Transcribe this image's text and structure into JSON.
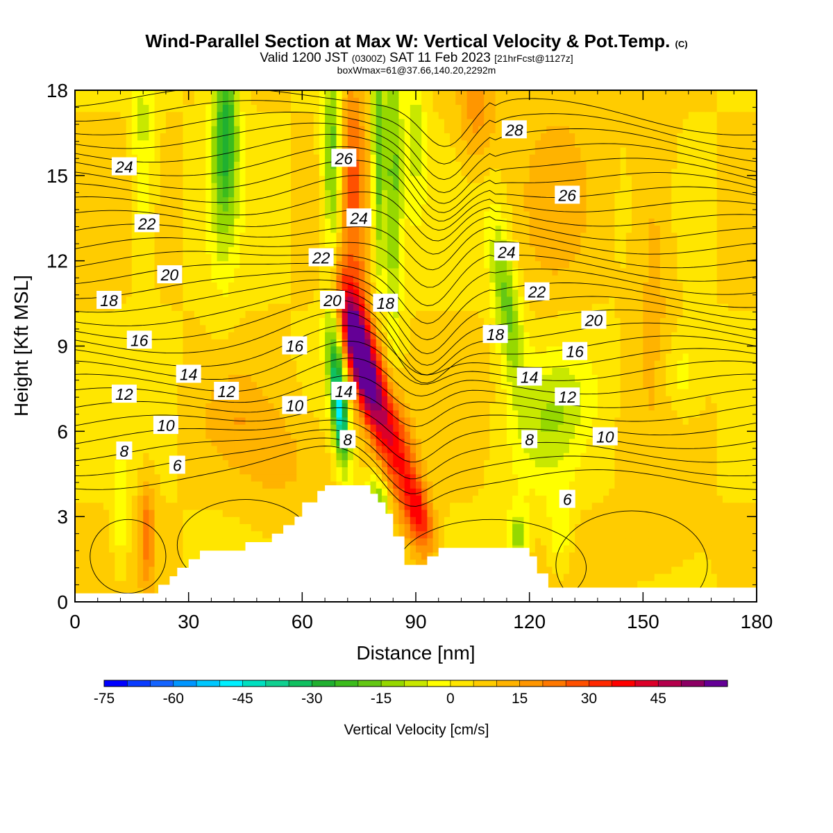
{
  "title": {
    "main": "Wind-Parallel Section at Max W: Vertical Velocity & Pot.Temp.",
    "main_mark": "(C)",
    "valid_prefix": "Valid 1200 JST",
    "valid_zulu": "(0300Z)",
    "valid_date": "SAT 11 Feb 2023",
    "forecast": "[21hrFcst@1127z]",
    "box_info": "boxWmax=61@37.66,140.20,2292m"
  },
  "chart_data": {
    "type": "heatmap",
    "xlabel": "Distance [nm]",
    "ylabel": "Height [Kft MSL]",
    "xlim": [
      0,
      180
    ],
    "ylim": [
      0,
      18
    ],
    "x_ticks": [
      0,
      30,
      60,
      90,
      120,
      150,
      180
    ],
    "y_ticks": [
      0,
      3,
      6,
      9,
      12,
      15,
      18
    ],
    "colorbar": {
      "label": "Vertical Velocity [cm/s]",
      "min": -75,
      "max": 55,
      "step": 5,
      "tick_values": [
        -75,
        -60,
        -45,
        -30,
        -15,
        0,
        15,
        30,
        45
      ],
      "tick_labels": [
        "-75",
        "-60",
        "-45",
        "-30",
        "-15",
        "0",
        "15",
        "30",
        "45"
      ],
      "colors": [
        "#0000ff",
        "#0a3cff",
        "#1464ff",
        "#0096ff",
        "#00c8ff",
        "#00f0ff",
        "#00e0c0",
        "#10d090",
        "#10c060",
        "#20b030",
        "#3cbc1c",
        "#64c814",
        "#96d800",
        "#c8e800",
        "#ffff00",
        "#ffe600",
        "#ffcc00",
        "#ffb300",
        "#ff9600",
        "#ff7800",
        "#ff5000",
        "#ff2800",
        "#ff0000",
        "#dc0028",
        "#b4004c",
        "#8c0064",
        "#640096"
      ]
    },
    "terrain_kft": {
      "x": [
        0,
        22,
        22,
        25,
        25,
        27,
        27,
        30,
        30,
        33,
        33,
        45,
        45,
        52,
        52,
        55,
        55,
        58,
        58,
        60,
        60,
        64,
        64,
        66,
        66,
        69,
        69,
        78,
        78,
        80,
        80,
        82,
        82,
        84,
        84,
        87,
        87,
        93,
        93,
        96,
        96,
        120,
        120,
        122,
        122,
        125,
        125,
        180
      ],
      "y": [
        0.3,
        0.3,
        0.6,
        0.6,
        0.9,
        0.9,
        1.2,
        1.2,
        1.5,
        1.5,
        1.8,
        1.8,
        2.1,
        2.1,
        2.4,
        2.4,
        2.7,
        2.7,
        3.0,
        3.0,
        3.5,
        3.5,
        3.9,
        3.9,
        4.1,
        4.1,
        4.1,
        4.1,
        3.8,
        3.8,
        3.5,
        3.5,
        3.1,
        3.1,
        2.3,
        2.3,
        1.3,
        1.3,
        1.6,
        1.6,
        1.9,
        1.9,
        1.6,
        1.6,
        1.0,
        1.0,
        0.5,
        0.5
      ]
    },
    "velocity_features": [
      {
        "x": 75,
        "y": 8.8,
        "sx": 3.5,
        "sy": 2.2,
        "tilt": 0.75,
        "value": 48
      },
      {
        "x": 79,
        "y": 7.5,
        "sx": 5,
        "sy": 3.5,
        "tilt": 0.75,
        "value": 22
      },
      {
        "x": 86,
        "y": 5,
        "sx": 4.5,
        "sy": 3,
        "tilt": 0.9,
        "value": 22
      },
      {
        "x": 91,
        "y": 3,
        "sx": 3,
        "sy": 1.2,
        "tilt": 0.5,
        "value": 18
      },
      {
        "x": 74,
        "y": 12.5,
        "sx": 4,
        "sy": 5,
        "tilt": 0,
        "value": 12
      },
      {
        "x": 73,
        "y": 16,
        "sx": 3,
        "sy": 3,
        "tilt": 0,
        "value": 12
      },
      {
        "x": 19,
        "y": 2.5,
        "sx": 2,
        "sy": 1.8,
        "tilt": 0,
        "value": 18
      },
      {
        "x": 106,
        "y": 17.2,
        "sx": 5,
        "sy": 2,
        "tilt": 0,
        "value": 12
      },
      {
        "x": 153,
        "y": 13,
        "sx": 5,
        "sy": 6,
        "tilt": 0,
        "value": 8
      },
      {
        "x": 127,
        "y": 14.5,
        "sx": 10,
        "sy": 4,
        "tilt": 0,
        "value": 6
      },
      {
        "x": 55,
        "y": 5,
        "sx": 12,
        "sy": 2,
        "tilt": 0,
        "value": 6
      },
      {
        "x": 150,
        "y": 1.8,
        "sx": 12,
        "sy": 1.2,
        "tilt": 0,
        "value": 5
      },
      {
        "x": 42,
        "y": 6.5,
        "sx": 9,
        "sy": 1.5,
        "tilt": 0,
        "value": 6
      },
      {
        "x": 68,
        "y": 15.5,
        "sx": 2.5,
        "sy": 4,
        "tilt": 0,
        "value": -25
      },
      {
        "x": 70,
        "y": 6.5,
        "sx": 2,
        "sy": 1.8,
        "tilt": 0.3,
        "value": -42
      },
      {
        "x": 69,
        "y": 8.5,
        "sx": 2.5,
        "sy": 2,
        "tilt": 0.3,
        "value": -22
      },
      {
        "x": 80,
        "y": 16,
        "sx": 1.6,
        "sy": 5,
        "tilt": 0,
        "value": -24
      },
      {
        "x": 84,
        "y": 15,
        "sx": 2.5,
        "sy": 6,
        "tilt": 0,
        "value": -22
      },
      {
        "x": 90,
        "y": 16.5,
        "sx": 2.5,
        "sy": 3,
        "tilt": 0,
        "value": -12
      },
      {
        "x": 40,
        "y": 17,
        "sx": 3,
        "sy": 3,
        "tilt": 0,
        "value": -24
      },
      {
        "x": 39,
        "y": 15,
        "sx": 4,
        "sy": 4,
        "tilt": 0,
        "value": -12
      },
      {
        "x": 18,
        "y": 16,
        "sx": 3,
        "sy": 4,
        "tilt": 0,
        "value": -12
      },
      {
        "x": 114,
        "y": 10.5,
        "sx": 3.5,
        "sy": 3,
        "tilt": 0.4,
        "value": -22
      },
      {
        "x": 126,
        "y": 6.5,
        "sx": 10,
        "sy": 2.5,
        "tilt": -0.6,
        "value": -13
      },
      {
        "x": 80,
        "y": 3.5,
        "sx": 3,
        "sy": 1,
        "tilt": 0,
        "value": -22
      },
      {
        "x": 117,
        "y": 2.3,
        "sx": 2.5,
        "sy": 1,
        "tilt": 0,
        "value": -18
      },
      {
        "x": 128,
        "y": 2.5,
        "sx": 3,
        "sy": 1.5,
        "tilt": 0,
        "value": -10
      },
      {
        "x": 12,
        "y": 3,
        "sx": 2,
        "sy": 2,
        "tilt": 0,
        "value": -10
      },
      {
        "x": 160,
        "y": 8,
        "sx": 5,
        "sy": 1.5,
        "tilt": 0,
        "value": -9
      }
    ],
    "theta_contours_degC": [
      {
        "label": "6",
        "value": 6,
        "y0": 4.75,
        "label_x": 27,
        "label_y": 4.8,
        "label_x2": 130,
        "label_y2": 3.6
      },
      {
        "label": "8",
        "value": 8,
        "y0": 5.3,
        "label_x": 13,
        "label_y": 5.3,
        "label_x2": 72,
        "label_y2": 5.7,
        "label_x3": 120,
        "label_y3": 5.7
      },
      {
        "label": "10",
        "value": 10,
        "y0": 6.15,
        "label_x": 24,
        "label_y": 6.2,
        "label_x2": 58,
        "label_y2": 6.9,
        "label_x3": 140,
        "label_y3": 5.8
      },
      {
        "label": "12",
        "value": 12,
        "y0": 7.3,
        "label_x": 13,
        "label_y": 7.3,
        "label_x2": 40,
        "label_y2": 7.4,
        "label_x3": 130,
        "label_y3": 7.2
      },
      {
        "label": "14",
        "value": 14,
        "y0": 7.95,
        "label_x": 30,
        "label_y": 8.0,
        "label_x2": 71,
        "label_y2": 7.4,
        "label_x3": 120,
        "label_y3": 7.9
      },
      {
        "label": "16",
        "value": 16,
        "y0": 9.15,
        "label_x": 17,
        "label_y": 9.2,
        "label_x2": 58,
        "label_y2": 9.0,
        "label_x3": 132,
        "label_y3": 8.8
      },
      {
        "label": "18",
        "value": 18,
        "y0": 10.55,
        "label_x": 9,
        "label_y": 10.6,
        "label_x2": 82,
        "label_y2": 10.5,
        "label_x3": 111,
        "label_y3": 9.4
      },
      {
        "label": "20",
        "value": 20,
        "y0": 11.5,
        "label_x": 25,
        "label_y": 11.5,
        "label_x2": 68,
        "label_y2": 10.6,
        "label_x3": 137,
        "label_y3": 9.9
      },
      {
        "label": "22",
        "value": 22,
        "y0": 13.35,
        "label_x": 19,
        "label_y": 13.3,
        "label_x2": 65,
        "label_y2": 12.1,
        "label_x3": 122,
        "label_y3": 10.9
      },
      {
        "label": "24",
        "value": 24,
        "y0": 15.2,
        "label_x": 13,
        "label_y": 15.3,
        "label_x2": 75,
        "label_y2": 13.5,
        "label_x3": 114,
        "label_y3": 12.3
      },
      {
        "label": "26",
        "value": 26,
        "y0": 16.4,
        "label_x": 71,
        "label_y": 15.6,
        "label_x2": 130,
        "label_y2": 14.3
      },
      {
        "label": "28",
        "value": 28,
        "y0": 17.6,
        "label_x": 116,
        "label_y": 16.6
      }
    ]
  }
}
